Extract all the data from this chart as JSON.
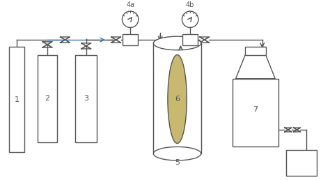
{
  "bg_color": "#ffffff",
  "lc": "#555555",
  "blue_color": "#4477aa",
  "olive_color": "#c8b870",
  "figsize": [
    4.74,
    2.58
  ],
  "dpi": 100
}
